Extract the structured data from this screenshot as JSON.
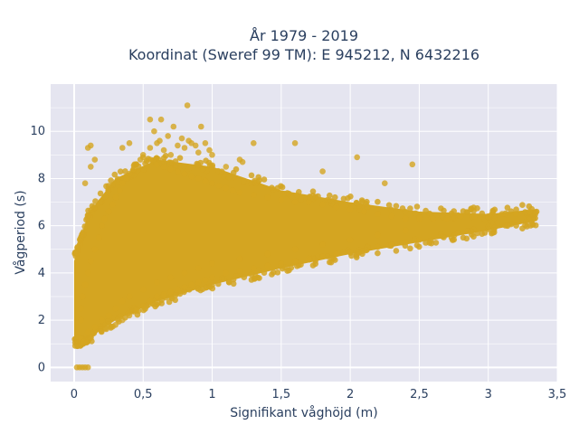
{
  "chart_data": {
    "type": "scatter",
    "title_line1": "År 1979 - 2019",
    "title_line2": "Koordinat (Sweref 99 TM): E 945212, N 6432216",
    "xlabel": "Signifikant våghöjd (m)",
    "ylabel": "Vågperiod (s)",
    "xlim": [
      -0.17,
      3.5
    ],
    "ylim": [
      -0.6,
      12
    ],
    "x_ticks": [
      0,
      0.5,
      1,
      1.5,
      2,
      2.5,
      3,
      3.5
    ],
    "x_tick_labels": [
      "0",
      "0,5",
      "1",
      "1,5",
      "2",
      "2,5",
      "3",
      "3,5"
    ],
    "y_ticks": [
      0,
      2,
      4,
      6,
      8,
      10
    ],
    "y_tick_labels": [
      "0",
      "2",
      "4",
      "6",
      "8",
      "10"
    ],
    "grid": true,
    "colors": {
      "marker": "#D4A521",
      "plot_background": "#E5E5F0",
      "grid": "#ffffff",
      "text": "#2a3f5f"
    },
    "series": [
      {
        "x": [
          0.02,
          0.04,
          0.06,
          0.08,
          0.1,
          0.03,
          0.05,
          0.07,
          0.09,
          0.05,
          0.06,
          0.08,
          0.1,
          0.12,
          0.15,
          0.18,
          0.2,
          0.22,
          0.25,
          0.28,
          0.3,
          0.33,
          0.35,
          0.38,
          0.4,
          0.43,
          0.45,
          0.48,
          0.5,
          0.55,
          0.6,
          0.65,
          0.7,
          0.75,
          0.8,
          0.85,
          0.9,
          0.95,
          1.0,
          1.05,
          1.1,
          1.15,
          1.2,
          1.3,
          1.4,
          1.5,
          1.6,
          1.7,
          1.8,
          1.9,
          2.0,
          2.1,
          2.2,
          2.3,
          2.4,
          2.5,
          2.6,
          2.7,
          2.8,
          2.9,
          3.0,
          3.1,
          3.2,
          3.3,
          3.35,
          0.05,
          0.1,
          0.15,
          0.2,
          0.25,
          0.3,
          0.35,
          0.4,
          0.5,
          0.6,
          0.7,
          0.8,
          0.9,
          1.0,
          1.2,
          1.4,
          1.6,
          1.8,
          2.0,
          2.2,
          2.4,
          0.3,
          0.35,
          0.4,
          0.45,
          0.5,
          0.55,
          0.6,
          0.65,
          0.7,
          0.75,
          0.8,
          0.85,
          0.9,
          0.95,
          1.0,
          1.1,
          1.2,
          1.3,
          1.4,
          1.5,
          1.6,
          1.7,
          1.8,
          1.9,
          2.0,
          2.2,
          2.3,
          2.4,
          2.5,
          0.5,
          0.55,
          0.6,
          0.62,
          0.65,
          0.7,
          0.75,
          0.8,
          0.82,
          0.85,
          0.9,
          1.0,
          1.1,
          1.2,
          1.3,
          0.55,
          0.58,
          0.63,
          0.68,
          0.72,
          0.78,
          0.83,
          0.88,
          0.92,
          0.98,
          0.1,
          0.12,
          0.15,
          0.35,
          0.4,
          1.22,
          1.6,
          1.8,
          2.05,
          2.25,
          2.45,
          0.08,
          0.12,
          0.95
        ],
        "y": [
          0,
          0,
          0,
          0,
          0,
          1.3,
          1.2,
          1.1,
          1.05,
          2.5,
          3.0,
          3.5,
          4.0,
          4.5,
          5.0,
          5.5,
          6.0,
          6.3,
          6.6,
          6.9,
          7.2,
          7.5,
          7.8,
          8.0,
          8.2,
          8.4,
          8.6,
          8.8,
          8.9,
          8.8,
          8.6,
          8.5,
          8.4,
          8.3,
          8.2,
          8.1,
          8.0,
          7.9,
          7.8,
          7.7,
          7.6,
          7.5,
          7.4,
          7.3,
          7.2,
          7.1,
          7.0,
          7.0,
          6.9,
          6.8,
          6.7,
          6.6,
          6.5,
          6.4,
          6.3,
          6.3,
          6.3,
          6.3,
          6.4,
          6.4,
          6.4,
          6.5,
          6.5,
          6.6,
          6.6,
          2.0,
          1.5,
          1.7,
          2.0,
          2.2,
          2.5,
          2.8,
          3.0,
          3.3,
          3.6,
          3.8,
          4.0,
          4.2,
          4.4,
          4.6,
          4.8,
          5.0,
          5.2,
          5.4,
          5.6,
          5.8,
          1.8,
          2.0,
          2.2,
          2.4,
          2.6,
          2.8,
          3.0,
          3.1,
          3.2,
          3.3,
          3.4,
          3.5,
          3.6,
          3.7,
          3.8,
          4.0,
          4.1,
          4.2,
          4.3,
          4.4,
          4.5,
          4.6,
          4.7,
          4.8,
          4.9,
          5.1,
          5.2,
          5.3,
          5.4,
          9.0,
          9.3,
          9.5,
          9.6,
          9.2,
          9.0,
          9.4,
          9.3,
          11.1,
          9.5,
          9.1,
          9.0,
          8.5,
          8.8,
          9.5,
          10.5,
          10.0,
          10.5,
          9.8,
          10.2,
          9.7,
          9.6,
          9.4,
          10.2,
          9.2,
          9.3,
          9.4,
          8.8,
          9.3,
          9.5,
          8.7,
          9.5,
          8.3,
          8.9,
          7.8,
          8.6,
          7.8,
          8.5,
          9.5
        ],
        "dense_bands": [
          {
            "x": [
              0.0,
              0.1
            ],
            "y_min": [
              1.0,
              1.2
            ],
            "y_max": [
              4.5,
              6.5
            ]
          },
          {
            "x": [
              0.1,
              0.3
            ],
            "y_min": [
              1.2,
              2.0
            ],
            "y_max": [
              6.5,
              8.0
            ]
          },
          {
            "x": [
              0.3,
              0.6
            ],
            "y_min": [
              2.0,
              2.8
            ],
            "y_max": [
              8.0,
              8.8
            ]
          },
          {
            "x": [
              0.6,
              1.0
            ],
            "y_min": [
              2.8,
              3.5
            ],
            "y_max": [
              8.8,
              8.5
            ]
          },
          {
            "x": [
              1.0,
              1.5
            ],
            "y_min": [
              3.5,
              4.2
            ],
            "y_max": [
              8.5,
              7.5
            ]
          },
          {
            "x": [
              1.5,
              2.0
            ],
            "y_min": [
              4.2,
              4.8
            ],
            "y_max": [
              7.5,
              7.0
            ]
          },
          {
            "x": [
              2.0,
              2.5
            ],
            "y_min": [
              4.8,
              5.3
            ],
            "y_max": [
              7.0,
              6.6
            ]
          },
          {
            "x": [
              2.5,
              3.0
            ],
            "y_min": [
              5.3,
              5.8
            ],
            "y_max": [
              6.6,
              6.5
            ]
          },
          {
            "x": [
              3.0,
              3.35
            ],
            "y_min": [
              5.8,
              6.2
            ],
            "y_max": [
              6.5,
              6.7
            ]
          }
        ]
      }
    ]
  }
}
